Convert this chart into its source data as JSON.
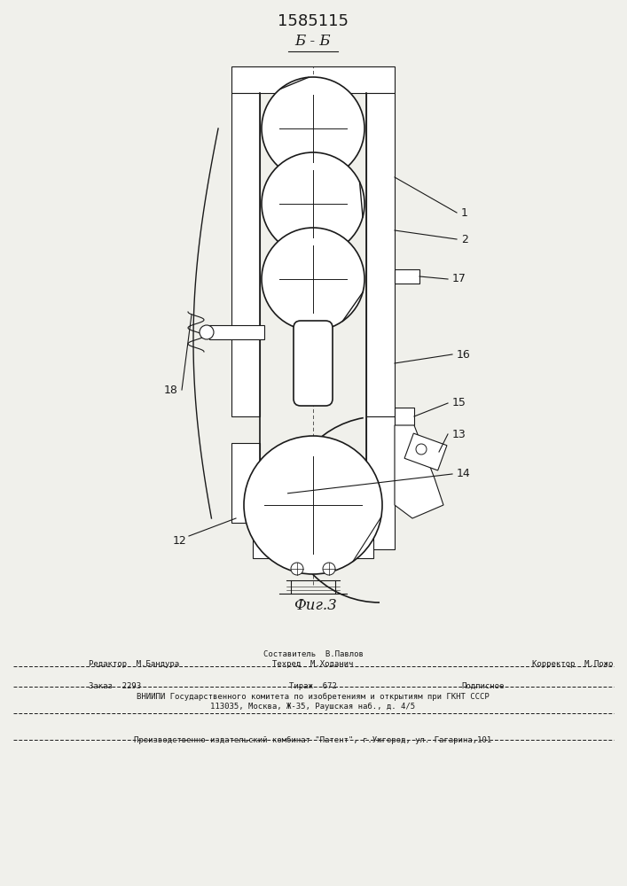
{
  "patent_number": "1585115",
  "section_label": "Б - Б",
  "figure_label": "Фиг.3",
  "bg_color": "#f0f0eb",
  "line_color": "#1a1a1a",
  "footer": {
    "line1_center": "Составитель  В.Павлов",
    "line2_left": "Редактор  М.Бандура",
    "line2_center": "Техред  М.Ходанич",
    "line2_right": "Корректор  М.Пожо",
    "line3_left": "Заказ  2293",
    "line3_center": "Тираж  672",
    "line3_right": "Подписное",
    "line4": "ВНИИПИ Государственного комитета по изобретениям и открытиям при ГКНТ СССР",
    "line5": "113035, Москва, Ж-35, Раушская наб., д. 4/5",
    "line6": "Производственно-издательский комбинат \"Патент\", г.Ужгород, ул. Гагарина,101"
  }
}
